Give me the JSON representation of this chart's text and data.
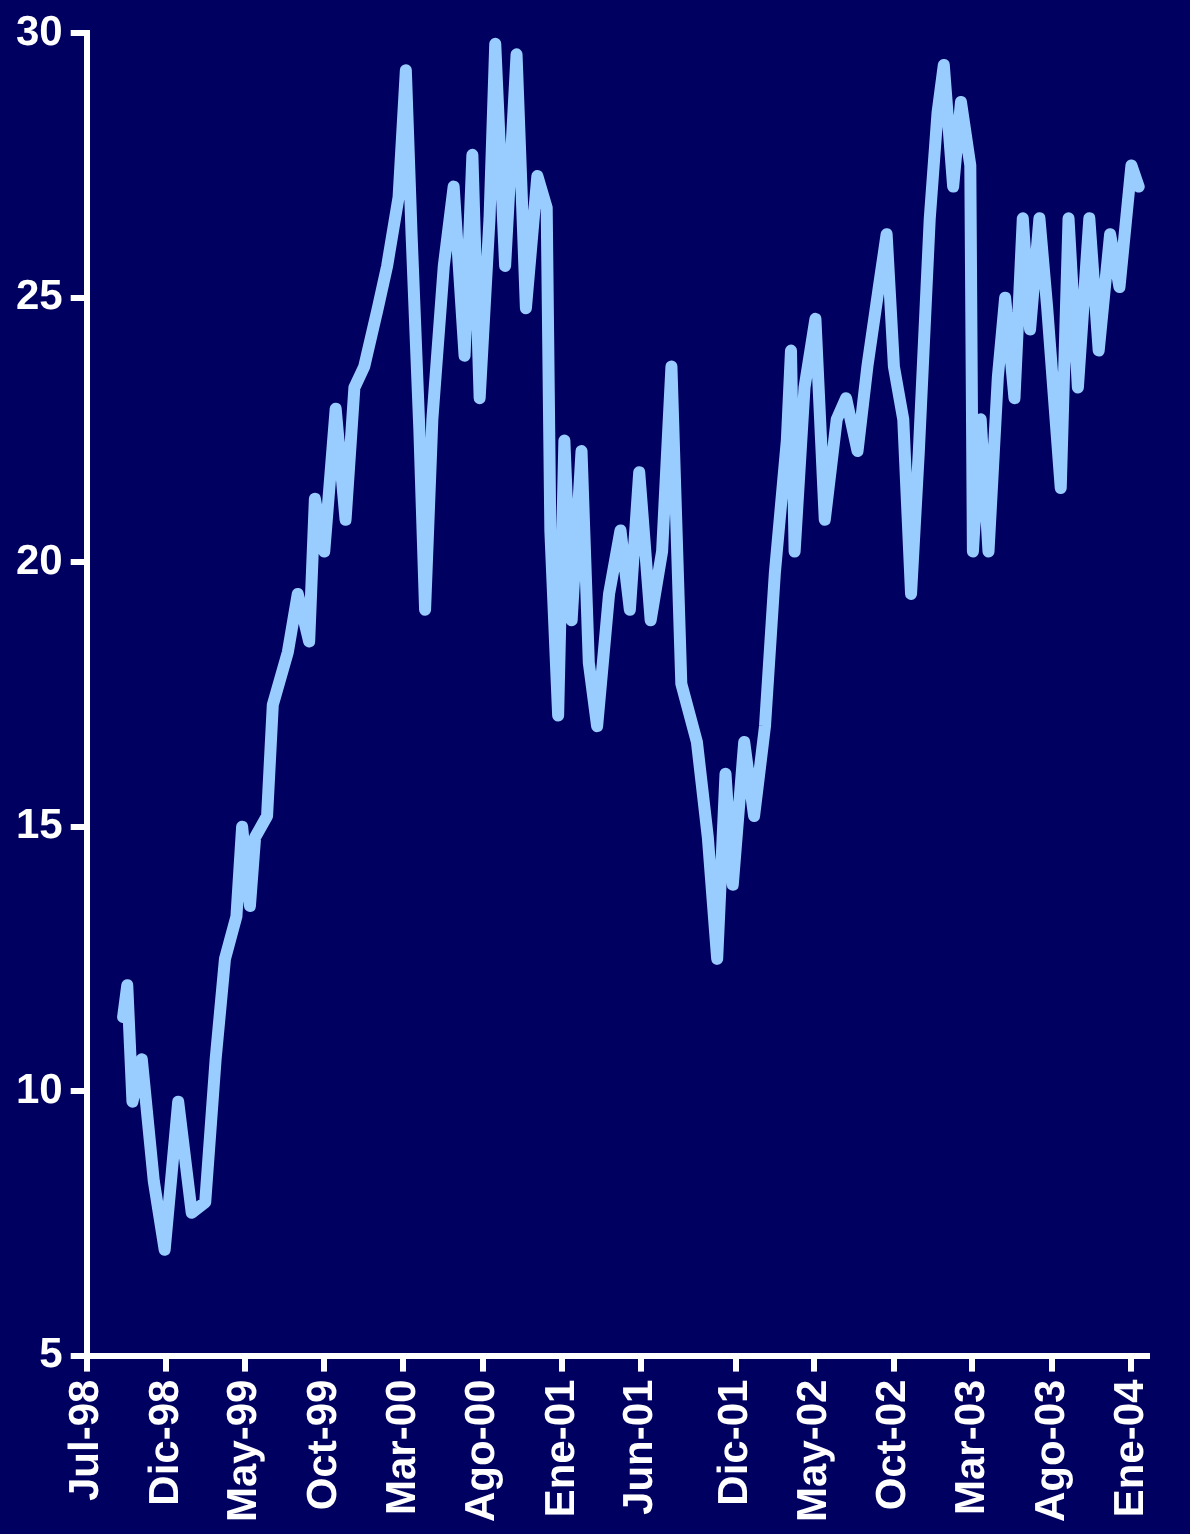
{
  "chart_data": {
    "type": "line",
    "xlim": [
      "1998-07-01",
      "2004-01-30"
    ],
    "ylim": [
      5,
      30
    ],
    "yticks": [
      5,
      10,
      15,
      20,
      25,
      30
    ],
    "xticks": [
      {
        "value": "1998-07",
        "label": "Jul-98"
      },
      {
        "value": "1998-12",
        "label": "Dic-98"
      },
      {
        "value": "1999-05",
        "label": "May-99"
      },
      {
        "value": "1999-10",
        "label": "Oct-99"
      },
      {
        "value": "2000-03",
        "label": "Mar-00"
      },
      {
        "value": "2000-08",
        "label": "Ago-00"
      },
      {
        "value": "2001-01",
        "label": "Ene-01"
      },
      {
        "value": "2001-06",
        "label": "Jun-01"
      },
      {
        "value": "2001-12",
        "label": "Dic-01"
      },
      {
        "value": "2002-05",
        "label": "May-02"
      },
      {
        "value": "2002-10",
        "label": "Oct-02"
      },
      {
        "value": "2003-03",
        "label": "Mar-03"
      },
      {
        "value": "2003-08",
        "label": "Ago-03"
      },
      {
        "value": "2004-01",
        "label": "Ene-04"
      }
    ],
    "grid": false,
    "legend": false,
    "marker": "none",
    "line_style": "solid",
    "series": [
      {
        "color": "#99ccff",
        "x": [
          "1998-09-09",
          "1998-09-17",
          "1998-09-27",
          "1998-10-15",
          "1998-11-07",
          "1998-11-28",
          "1998-12-24",
          "1999-01-19",
          "1999-02-14",
          "1999-03-06",
          "1999-03-24",
          "1999-04-15",
          "1999-04-26",
          "1999-05-11",
          "1999-05-21",
          "1999-06-13",
          "1999-06-24",
          "1999-07-23",
          "1999-08-11",
          "1999-09-02",
          "1999-09-13",
          "1999-10-01",
          "1999-10-23",
          "1999-11-11",
          "1999-11-28",
          "1999-12-17",
          "2000-01-12",
          "2000-01-30",
          "2000-02-21",
          "2000-03-06",
          "2000-03-17",
          "2000-04-01",
          "2000-04-12",
          "2000-04-26",
          "2000-05-18",
          "2000-06-06",
          "2000-06-27",
          "2000-07-12",
          "2000-07-26",
          "2000-08-14",
          "2000-08-25",
          "2000-09-13",
          "2000-10-05",
          "2000-10-23",
          "2000-11-14",
          "2000-12-02",
          "2000-12-09",
          "2000-12-24",
          "2001-01-05",
          "2001-01-19",
          "2001-02-07",
          "2001-02-21",
          "2001-03-09",
          "2001-04-01",
          "2001-04-23",
          "2001-05-11",
          "2001-05-29",
          "2001-06-20",
          "2001-07-12",
          "2001-07-30",
          "2001-08-18",
          "2001-09-17",
          "2001-10-08",
          "2001-10-26",
          "2001-11-11",
          "2001-11-25",
          "2001-12-17",
          "2002-01-05",
          "2002-01-26",
          "2002-02-14",
          "2002-03-09",
          "2002-03-17",
          "2002-03-24",
          "2002-04-12",
          "2002-05-03",
          "2002-05-21",
          "2002-06-13",
          "2002-07-01",
          "2002-07-23",
          "2002-08-11",
          "2002-09-02",
          "2002-09-17",
          "2002-10-01",
          "2002-10-19",
          "2002-11-03",
          "2002-11-18",
          "2002-12-09",
          "2002-12-24",
          "2003-01-05",
          "2003-01-23",
          "2003-02-07",
          "2003-02-25",
          "2003-03-02",
          "2003-03-17",
          "2003-04-01",
          "2003-04-19",
          "2003-05-03",
          "2003-05-21",
          "2003-06-06",
          "2003-06-20",
          "2003-07-08",
          "2003-07-23",
          "2003-08-18",
          "2003-09-02",
          "2003-09-20",
          "2003-10-12",
          "2003-10-30",
          "2003-11-21",
          "2003-12-09",
          "2004-01-01",
          "2004-01-15"
        ],
        "values": [
          11.4,
          12.0,
          9.8,
          10.6,
          8.3,
          7.0,
          9.8,
          7.7,
          7.9,
          10.6,
          12.5,
          13.3,
          15.0,
          13.5,
          14.8,
          15.2,
          17.3,
          18.3,
          19.4,
          18.5,
          21.2,
          20.2,
          22.9,
          20.8,
          23.3,
          23.7,
          24.8,
          25.6,
          26.9,
          29.3,
          26.2,
          22.5,
          19.1,
          22.7,
          25.6,
          27.1,
          23.9,
          27.7,
          23.1,
          26.5,
          29.8,
          25.6,
          29.6,
          24.8,
          27.3,
          26.7,
          20.6,
          17.1,
          22.3,
          18.9,
          22.1,
          18.1,
          16.9,
          19.4,
          20.6,
          19.1,
          21.7,
          18.9,
          20.2,
          23.7,
          17.7,
          16.6,
          14.8,
          12.5,
          16.0,
          13.9,
          16.6,
          15.2,
          16.9,
          19.8,
          22.3,
          24.0,
          20.2,
          23.3,
          24.6,
          20.8,
          22.7,
          23.1,
          22.1,
          23.7,
          25.2,
          26.2,
          23.7,
          22.7,
          19.4,
          22.1,
          26.5,
          28.5,
          29.4,
          27.1,
          28.7,
          27.5,
          20.2,
          22.7,
          20.2,
          23.5,
          25.0,
          23.1,
          26.5,
          24.4,
          26.5,
          24.8,
          21.4,
          26.5,
          23.3,
          26.5,
          24.0,
          26.2,
          25.2,
          27.5,
          27.1
        ]
      }
    ]
  }
}
